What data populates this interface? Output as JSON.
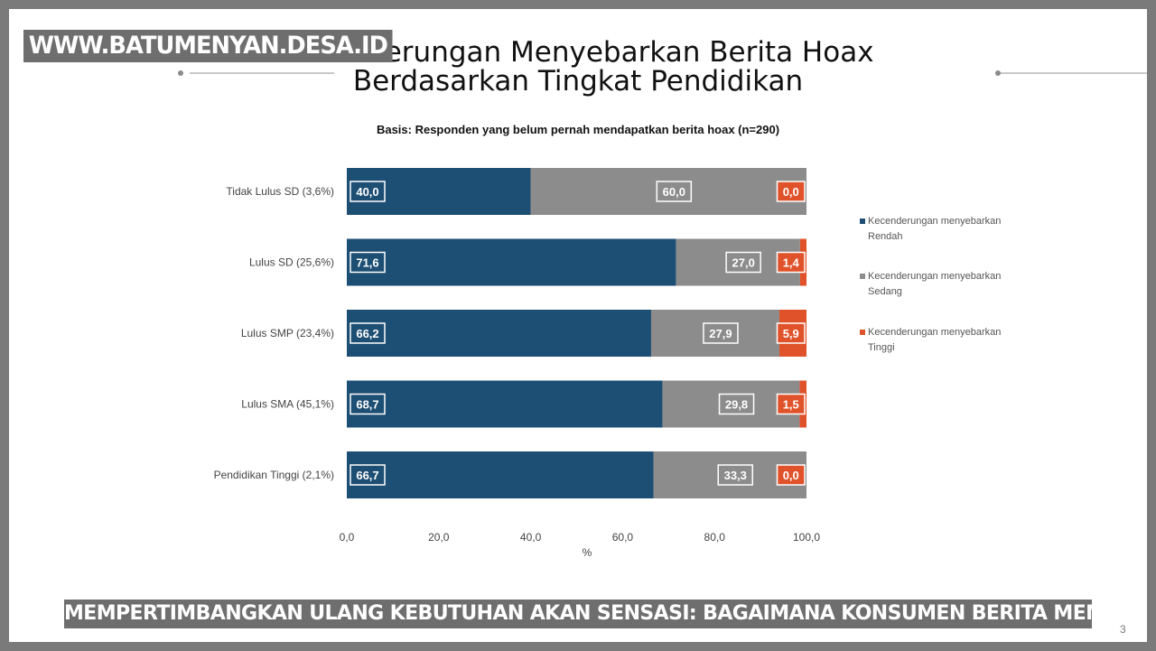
{
  "watermark": "WWW.BATUMENYAN.DESA.ID",
  "caption": "MEMPERTIMBANGKAN ULANG KEBUTUHAN AKAN SENSASI: BAGAIMANA KONSUMEN BERITA MEMPENGARUHI HOAKS",
  "page_number": "3",
  "chart_data": {
    "type": "bar",
    "orientation": "horizontal",
    "stacked": true,
    "title_lines": [
      "Kecenderungan Menyebarkan Berita Hoax",
      "Berdasarkan Tingkat Pendidikan"
    ],
    "subtitle": "Basis: Responden yang belum pernah mendapatkan berita hoax (n=290)",
    "categories": [
      "Tidak Lulus SD (3,6%)",
      "Lulus SD (25,6%)",
      "Lulus SMP (23,4%)",
      "Lulus SMA (45,1%)",
      "Pendidikan Tinggi (2,1%)"
    ],
    "series": [
      {
        "name": "Kecenderungan menyebarkan Rendah",
        "color": "#1d4e73",
        "values": [
          40.0,
          71.6,
          66.2,
          68.7,
          66.7
        ],
        "labels": [
          "40,0",
          "71,6",
          "66,2",
          "68,7",
          "66,7"
        ]
      },
      {
        "name": "Kecenderungan menyebarkan Sedang",
        "color": "#8c8c8c",
        "values": [
          60.0,
          27.0,
          27.9,
          29.8,
          33.3
        ],
        "labels": [
          "60,0",
          "27,0",
          "27,9",
          "29,8",
          "33,3"
        ]
      },
      {
        "name": "Kecenderungan menyebarkan Tinggi",
        "color": "#e0522a",
        "values": [
          0.0,
          1.4,
          5.9,
          1.5,
          0.0
        ],
        "labels": [
          "0,0",
          "1,4",
          "5,9",
          "1,5",
          "0,0"
        ]
      }
    ],
    "legend_lines": [
      [
        "Kecenderungan menyebarkan",
        "Rendah"
      ],
      [
        "Kecenderungan menyebarkan",
        "Sedang"
      ],
      [
        "Kecenderungan menyebarkan",
        "Tinggi"
      ]
    ],
    "xlim": [
      0,
      100
    ],
    "xticks": [
      0,
      20,
      40,
      60,
      80,
      100
    ],
    "xtick_labels": [
      "0,0",
      "20,0",
      "40,0",
      "60,0",
      "80,0",
      "100,0"
    ],
    "xlabel": "%",
    "legend_position": "right",
    "grid": false
  }
}
